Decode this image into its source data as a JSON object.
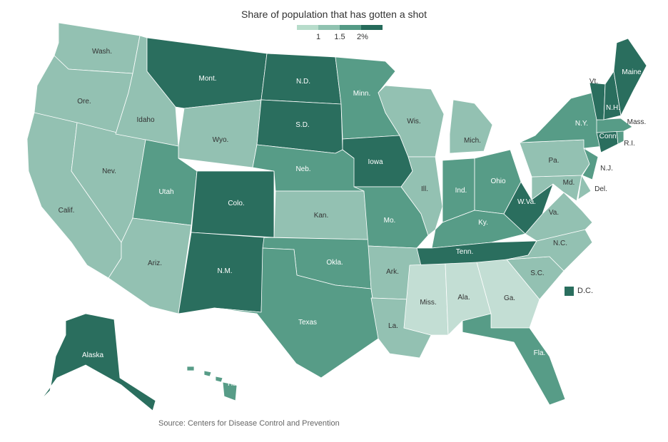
{
  "title": "Share of population that has gotten a shot",
  "legend": {
    "ticks": [
      "1",
      "1.5",
      "2%"
    ],
    "colors": [
      "#b7dccb",
      "#8fc2b0",
      "#549a85",
      "#266b5b"
    ]
  },
  "colors": {
    "c1": "#c3ded4",
    "c2": "#93c1b2",
    "c3": "#579c87",
    "c4": "#2a6e5e",
    "border": "#ffffff",
    "label_dark": "#ffffff",
    "label_light": "#333333"
  },
  "states": [
    {
      "id": "wa",
      "label": "Wash.",
      "level": 2
    },
    {
      "id": "or",
      "label": "Ore.",
      "level": 2
    },
    {
      "id": "ca",
      "label": "Calif.",
      "level": 2
    },
    {
      "id": "nv",
      "label": "Nev.",
      "level": 2
    },
    {
      "id": "id",
      "label": "Idaho",
      "level": 2
    },
    {
      "id": "mt",
      "label": "Mont.",
      "level": 4
    },
    {
      "id": "wy",
      "label": "Wyo.",
      "level": 2
    },
    {
      "id": "ut",
      "label": "Utah",
      "level": 3
    },
    {
      "id": "az",
      "label": "Ariz.",
      "level": 2
    },
    {
      "id": "co",
      "label": "Colo.",
      "level": 4
    },
    {
      "id": "nm",
      "label": "N.M.",
      "level": 4
    },
    {
      "id": "nd",
      "label": "N.D.",
      "level": 4
    },
    {
      "id": "sd",
      "label": "S.D.",
      "level": 4
    },
    {
      "id": "ne",
      "label": "Neb.",
      "level": 3
    },
    {
      "id": "ks",
      "label": "Kan.",
      "level": 2
    },
    {
      "id": "ok",
      "label": "Okla.",
      "level": 3
    },
    {
      "id": "tx",
      "label": "Texas",
      "level": 3
    },
    {
      "id": "mn",
      "label": "Minn.",
      "level": 3
    },
    {
      "id": "ia",
      "label": "Iowa",
      "level": 4
    },
    {
      "id": "mo",
      "label": "Mo.",
      "level": 3
    },
    {
      "id": "ar",
      "label": "Ark.",
      "level": 2
    },
    {
      "id": "la",
      "label": "La.",
      "level": 2
    },
    {
      "id": "wi",
      "label": "Wis.",
      "level": 2
    },
    {
      "id": "il",
      "label": "Ill.",
      "level": 2
    },
    {
      "id": "mi",
      "label": "Mich.",
      "level": 2
    },
    {
      "id": "in",
      "label": "Ind.",
      "level": 3
    },
    {
      "id": "oh",
      "label": "Ohio",
      "level": 3
    },
    {
      "id": "ky",
      "label": "Ky.",
      "level": 3
    },
    {
      "id": "tn",
      "label": "Tenn.",
      "level": 4
    },
    {
      "id": "ms",
      "label": "Miss.",
      "level": 1
    },
    {
      "id": "al",
      "label": "Ala.",
      "level": 1
    },
    {
      "id": "ga",
      "label": "Ga.",
      "level": 1
    },
    {
      "id": "fl",
      "label": "Fla.",
      "level": 3
    },
    {
      "id": "sc",
      "label": "S.C.",
      "level": 2
    },
    {
      "id": "nc",
      "label": "N.C.",
      "level": 2
    },
    {
      "id": "va",
      "label": "Va.",
      "level": 2
    },
    {
      "id": "wv",
      "label": "W.Va.",
      "level": 4
    },
    {
      "id": "md",
      "label": "Md.",
      "level": 2
    },
    {
      "id": "de",
      "label": "Del.",
      "level": 2
    },
    {
      "id": "pa",
      "label": "Pa.",
      "level": 2
    },
    {
      "id": "nj",
      "label": "N.J.",
      "level": 3
    },
    {
      "id": "ny",
      "label": "N.Y.",
      "level": 3
    },
    {
      "id": "ct",
      "label": "Conn.",
      "level": 4
    },
    {
      "id": "ri",
      "label": "R.I.",
      "level": 3
    },
    {
      "id": "ma",
      "label": "Mass.",
      "level": 3
    },
    {
      "id": "vt",
      "label": "Vt.",
      "level": 4
    },
    {
      "id": "nh",
      "label": "N.H.",
      "level": 4
    },
    {
      "id": "me",
      "label": "Maine",
      "level": 4
    },
    {
      "id": "ak",
      "label": "Alaska",
      "level": 4
    },
    {
      "id": "hi",
      "label": "Hawaii",
      "level": 3
    }
  ],
  "dc": {
    "label": "D.C.",
    "level": 4
  },
  "source": "Source: Centers for Disease Control and Prevention"
}
